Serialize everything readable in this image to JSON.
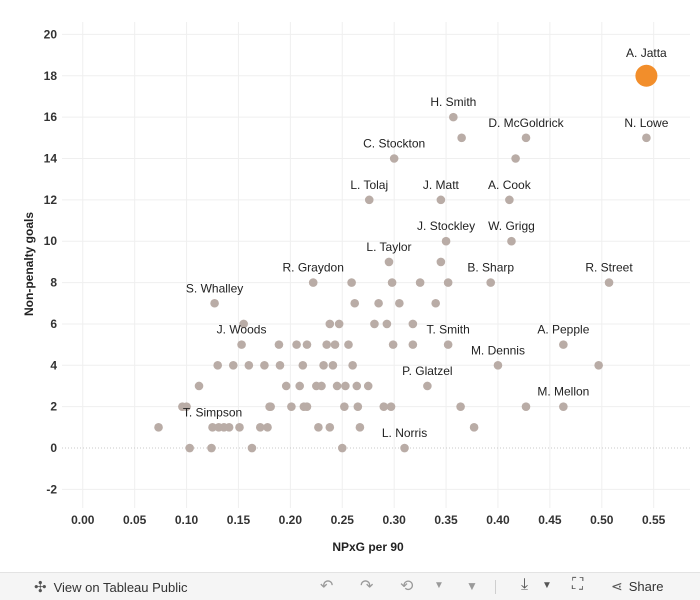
{
  "chart_data": {
    "type": "scatter",
    "xlabel": "NPxG per 90",
    "ylabel": "Non-penalty goals",
    "xlim": [
      -0.02,
      0.585
    ],
    "ylim": [
      -2.9,
      20.6
    ],
    "xticks": [
      "0.00",
      "0.05",
      "0.10",
      "0.15",
      "0.20",
      "0.25",
      "0.30",
      "0.35",
      "0.40",
      "0.45",
      "0.50",
      "0.55"
    ],
    "xtick_values": [
      0,
      0.05,
      0.1,
      0.15,
      0.2,
      0.25,
      0.3,
      0.35,
      0.4,
      0.45,
      0.5,
      0.55
    ],
    "yticks": [
      "-2",
      "0",
      "2",
      "4",
      "6",
      "8",
      "10",
      "12",
      "14",
      "16",
      "18",
      "20"
    ],
    "ytick_values": [
      -2,
      0,
      2,
      4,
      6,
      8,
      10,
      12,
      14,
      16,
      18,
      20
    ],
    "grid": true,
    "colors": {
      "point": "#b9aca6",
      "highlight": "#f28e2b"
    },
    "highlight": {
      "label": "A. Jatta",
      "x": 0.543,
      "y": 18
    },
    "labeled_points": [
      {
        "label": "H. Smith",
        "x": 0.357,
        "y": 16
      },
      {
        "label": "D. McGoldrick",
        "x": 0.427,
        "y": 15
      },
      {
        "label": "N. Lowe",
        "x": 0.543,
        "y": 15
      },
      {
        "label": "C. Stockton",
        "x": 0.3,
        "y": 14
      },
      {
        "label": "L. Tolaj",
        "x": 0.276,
        "y": 12
      },
      {
        "label": "J. Matt",
        "x": 0.345,
        "y": 12
      },
      {
        "label": "A. Cook",
        "x": 0.411,
        "y": 12
      },
      {
        "label": "J. Stockley",
        "x": 0.35,
        "y": 10
      },
      {
        "label": "W. Grigg",
        "x": 0.413,
        "y": 10
      },
      {
        "label": "L. Taylor",
        "x": 0.295,
        "y": 9
      },
      {
        "label": "R. Graydon",
        "x": 0.222,
        "y": 8
      },
      {
        "label": "B. Sharp",
        "x": 0.393,
        "y": 8
      },
      {
        "label": "R. Street",
        "x": 0.507,
        "y": 8
      },
      {
        "label": "S. Whalley",
        "x": 0.127,
        "y": 7
      },
      {
        "label": "J. Woods",
        "x": 0.153,
        "y": 5
      },
      {
        "label": "T. Smith",
        "x": 0.352,
        "y": 5
      },
      {
        "label": "A. Pepple",
        "x": 0.463,
        "y": 5
      },
      {
        "label": "M. Dennis",
        "x": 0.4,
        "y": 4
      },
      {
        "label": "P. Glatzel",
        "x": 0.332,
        "y": 3
      },
      {
        "label": "M. Mellon",
        "x": 0.463,
        "y": 2
      },
      {
        "label": "T. Simpson",
        "x": 0.125,
        "y": 1
      },
      {
        "label": "L. Norris",
        "x": 0.31,
        "y": 0
      }
    ],
    "points": [
      [
        0.073,
        1
      ],
      [
        0.096,
        2
      ],
      [
        0.1,
        2
      ],
      [
        0.103,
        0
      ],
      [
        0.112,
        3
      ],
      [
        0.124,
        0
      ],
      [
        0.13,
        4
      ],
      [
        0.131,
        1
      ],
      [
        0.136,
        1
      ],
      [
        0.141,
        1
      ],
      [
        0.145,
        4
      ],
      [
        0.151,
        1
      ],
      [
        0.155,
        6
      ],
      [
        0.16,
        4
      ],
      [
        0.163,
        0
      ],
      [
        0.171,
        1
      ],
      [
        0.175,
        4
      ],
      [
        0.178,
        1
      ],
      [
        0.18,
        2
      ],
      [
        0.181,
        2
      ],
      [
        0.189,
        5
      ],
      [
        0.19,
        4
      ],
      [
        0.196,
        3
      ],
      [
        0.201,
        2
      ],
      [
        0.206,
        5
      ],
      [
        0.209,
        3
      ],
      [
        0.212,
        4
      ],
      [
        0.213,
        2
      ],
      [
        0.216,
        2
      ],
      [
        0.216,
        5
      ],
      [
        0.225,
        3
      ],
      [
        0.227,
        1
      ],
      [
        0.23,
        3
      ],
      [
        0.232,
        4
      ],
      [
        0.235,
        5
      ],
      [
        0.238,
        1
      ],
      [
        0.238,
        6
      ],
      [
        0.241,
        4
      ],
      [
        0.243,
        5
      ],
      [
        0.245,
        3
      ],
      [
        0.247,
        6
      ],
      [
        0.25,
        0
      ],
      [
        0.252,
        2
      ],
      [
        0.253,
        3
      ],
      [
        0.256,
        5
      ],
      [
        0.259,
        8
      ],
      [
        0.26,
        4
      ],
      [
        0.262,
        7
      ],
      [
        0.264,
        3
      ],
      [
        0.265,
        2
      ],
      [
        0.267,
        1
      ],
      [
        0.275,
        3
      ],
      [
        0.281,
        6
      ],
      [
        0.285,
        7
      ],
      [
        0.29,
        2
      ],
      [
        0.293,
        6
      ],
      [
        0.297,
        2
      ],
      [
        0.298,
        8
      ],
      [
        0.299,
        5
      ],
      [
        0.305,
        7
      ],
      [
        0.318,
        6
      ],
      [
        0.318,
        5
      ],
      [
        0.325,
        8
      ],
      [
        0.34,
        7
      ],
      [
        0.345,
        9
      ],
      [
        0.352,
        8
      ],
      [
        0.364,
        2
      ],
      [
        0.365,
        15
      ],
      [
        0.377,
        1
      ],
      [
        0.417,
        14
      ],
      [
        0.427,
        2
      ],
      [
        0.497,
        4
      ]
    ]
  },
  "toolbar": {
    "view_label": "View on Tableau Public",
    "share_label": "Share"
  }
}
